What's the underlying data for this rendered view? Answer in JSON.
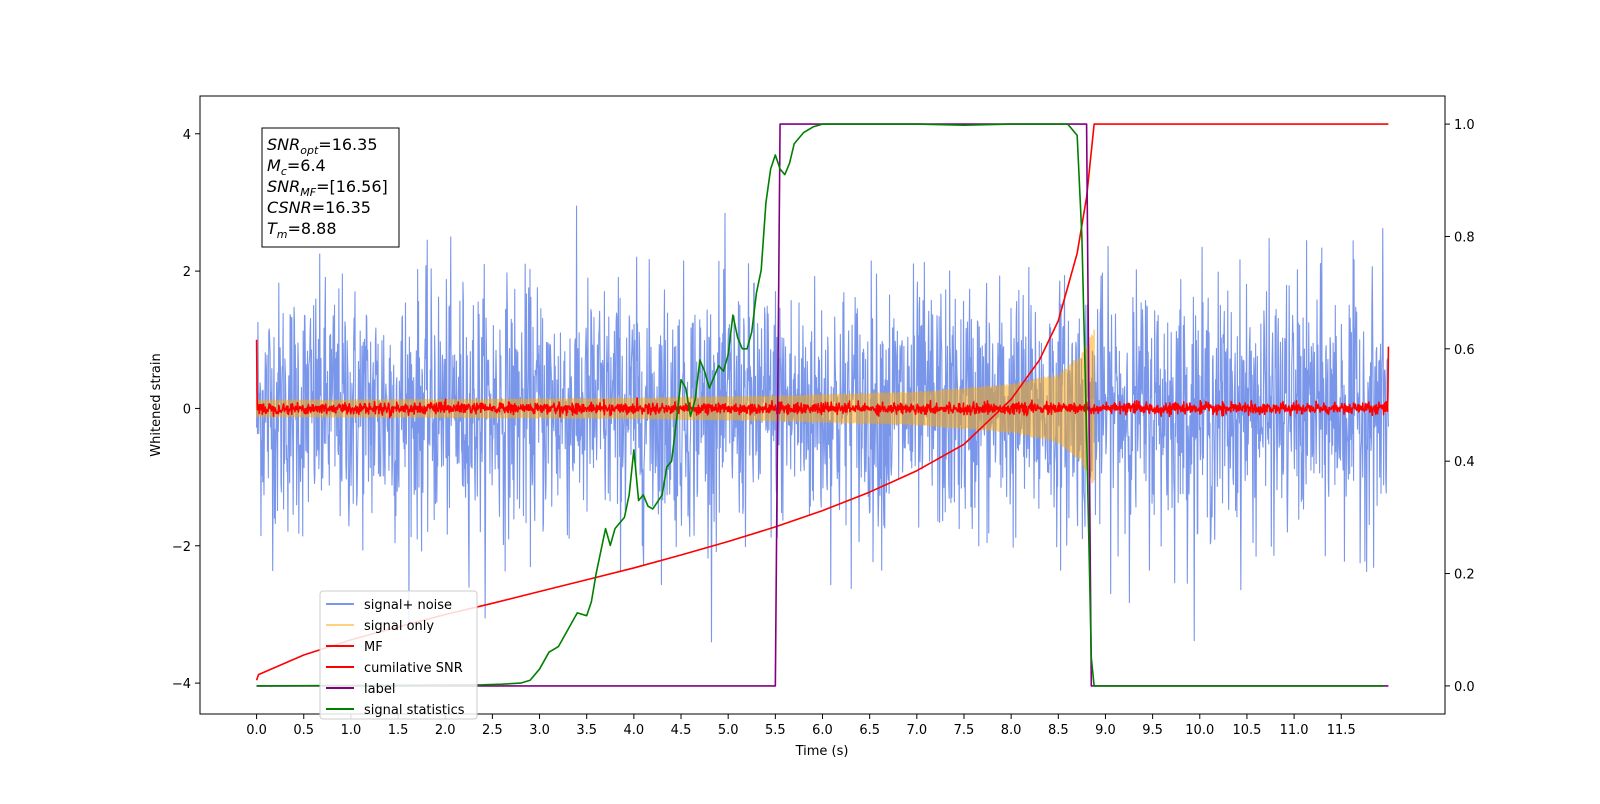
{
  "chart_data": {
    "type": "line",
    "title": "",
    "xlabel": "Time (s)",
    "ylabel": "Whitened strain",
    "y2label": "",
    "xlim": [
      -0.6,
      12.6
    ],
    "ylim": [
      -4.45,
      4.55
    ],
    "y2lim": [
      -0.05,
      1.05
    ],
    "x_ticks": [
      0.0,
      0.5,
      1.0,
      1.5,
      2.0,
      2.5,
      3.0,
      3.5,
      4.0,
      4.5,
      5.0,
      5.5,
      6.0,
      6.5,
      7.0,
      7.5,
      8.0,
      8.5,
      9.0,
      9.5,
      10.0,
      10.5,
      11.0,
      11.5
    ],
    "x_tick_labels": [
      "0.0",
      "0.5",
      "1.0",
      "1.5",
      "2.0",
      "2.5",
      "3.0",
      "3.5",
      "4.0",
      "4.5",
      "5.0",
      "5.5",
      "6.0",
      "6.5",
      "7.0",
      "7.5",
      "8.0",
      "8.5",
      "9.0",
      "9.5",
      "10.0",
      "10.5",
      "11.0",
      "11.5"
    ],
    "y_ticks": [
      -4,
      -2,
      0,
      2,
      4
    ],
    "y_tick_labels": [
      "−4",
      "−2",
      "0",
      "2",
      "4"
    ],
    "y2_ticks": [
      0.0,
      0.2,
      0.4,
      0.6,
      0.8,
      1.0
    ],
    "y2_tick_labels": [
      "0.0",
      "0.2",
      "0.4",
      "0.6",
      "0.8",
      "1.0"
    ],
    "grid": false,
    "legend_position": "lower-left",
    "annotation": {
      "lines": [
        {
          "main": "SNR",
          "sub": "opt",
          "rest": "=16.35"
        },
        {
          "main": "M",
          "sub": "c",
          "rest": "=6.4"
        },
        {
          "main": "SNR",
          "sub": "MF",
          "rest": "=[16.56]"
        },
        {
          "main": "CSNR",
          "sub": "",
          "rest": "=16.35"
        },
        {
          "main": "T",
          "sub": "m",
          "rest": "=8.88"
        }
      ]
    },
    "series": [
      {
        "name": "signal+ noise",
        "axis": "left",
        "color": "#4169e1",
        "opacity": 0.7,
        "kind": "noise",
        "x_range": [
          0.0,
          12.0
        ],
        "amplitude_std": 0.9
      },
      {
        "name": "signal only",
        "axis": "left",
        "color": "#ffa500",
        "opacity": 0.5,
        "kind": "chirp",
        "x_range": [
          0.0,
          8.88
        ],
        "envelope": {
          "x": [
            0.0,
            2.0,
            4.0,
            5.5,
            7.0,
            8.0,
            8.5,
            8.75,
            8.88
          ],
          "y": [
            0.12,
            0.13,
            0.15,
            0.18,
            0.24,
            0.35,
            0.5,
            0.8,
            1.15
          ]
        }
      },
      {
        "name": "MF",
        "axis": "left",
        "color": "#ff0000",
        "kind": "noise",
        "x_range": [
          0.0,
          12.0
        ],
        "amplitude_std": 0.04,
        "edge_start": 1.0,
        "edge_end": 0.9
      },
      {
        "name": "cumilative SNR",
        "axis": "right",
        "color": "#ff0000",
        "x": [
          0.0,
          0.02,
          0.5,
          1.0,
          1.5,
          2.0,
          2.5,
          3.0,
          3.5,
          4.0,
          4.5,
          5.0,
          5.5,
          6.0,
          6.5,
          7.0,
          7.5,
          8.0,
          8.3,
          8.5,
          8.7,
          8.8,
          8.88,
          12.0
        ],
        "y": [
          0.01,
          0.02,
          0.055,
          0.082,
          0.105,
          0.127,
          0.147,
          0.168,
          0.189,
          0.21,
          0.233,
          0.257,
          0.283,
          0.312,
          0.345,
          0.383,
          0.43,
          0.51,
          0.58,
          0.65,
          0.77,
          0.87,
          1.0,
          1.0
        ]
      },
      {
        "name": "label",
        "axis": "right",
        "color": "#800080",
        "x": [
          0.0,
          5.5,
          5.55,
          8.8,
          8.85,
          12.0
        ],
        "y": [
          0.0,
          0.0,
          1.0,
          1.0,
          0.0,
          0.0
        ]
      },
      {
        "name": "signal statistics",
        "axis": "right",
        "color": "#008000",
        "x": [
          0.0,
          2.4,
          2.6,
          2.8,
          2.9,
          3.0,
          3.1,
          3.2,
          3.3,
          3.4,
          3.5,
          3.55,
          3.6,
          3.7,
          3.75,
          3.8,
          3.9,
          3.95,
          4.0,
          4.05,
          4.1,
          4.15,
          4.2,
          4.3,
          4.35,
          4.4,
          4.45,
          4.5,
          4.55,
          4.6,
          4.65,
          4.7,
          4.75,
          4.8,
          4.85,
          4.9,
          4.95,
          5.0,
          5.05,
          5.1,
          5.15,
          5.2,
          5.25,
          5.3,
          5.35,
          5.4,
          5.45,
          5.5,
          5.55,
          5.6,
          5.65,
          5.7,
          5.8,
          5.9,
          6.0,
          6.5,
          7.0,
          7.5,
          8.0,
          8.5,
          8.6,
          8.7,
          8.75,
          8.8,
          8.85,
          8.88,
          8.92,
          9.0,
          11.0,
          11.95
        ],
        "y": [
          0.0,
          0.002,
          0.003,
          0.005,
          0.01,
          0.03,
          0.06,
          0.07,
          0.1,
          0.13,
          0.125,
          0.15,
          0.2,
          0.28,
          0.25,
          0.28,
          0.3,
          0.34,
          0.42,
          0.33,
          0.34,
          0.32,
          0.315,
          0.34,
          0.39,
          0.4,
          0.47,
          0.545,
          0.53,
          0.48,
          0.51,
          0.58,
          0.56,
          0.53,
          0.55,
          0.57,
          0.56,
          0.59,
          0.66,
          0.62,
          0.6,
          0.6,
          0.63,
          0.7,
          0.74,
          0.86,
          0.92,
          0.945,
          0.92,
          0.91,
          0.93,
          0.965,
          0.985,
          0.995,
          1.0,
          1.0,
          1.0,
          0.998,
          1.0,
          1.0,
          1.0,
          0.98,
          0.8,
          0.45,
          0.05,
          0.0,
          0.0,
          0.0,
          0.0,
          0.0
        ]
      }
    ]
  }
}
